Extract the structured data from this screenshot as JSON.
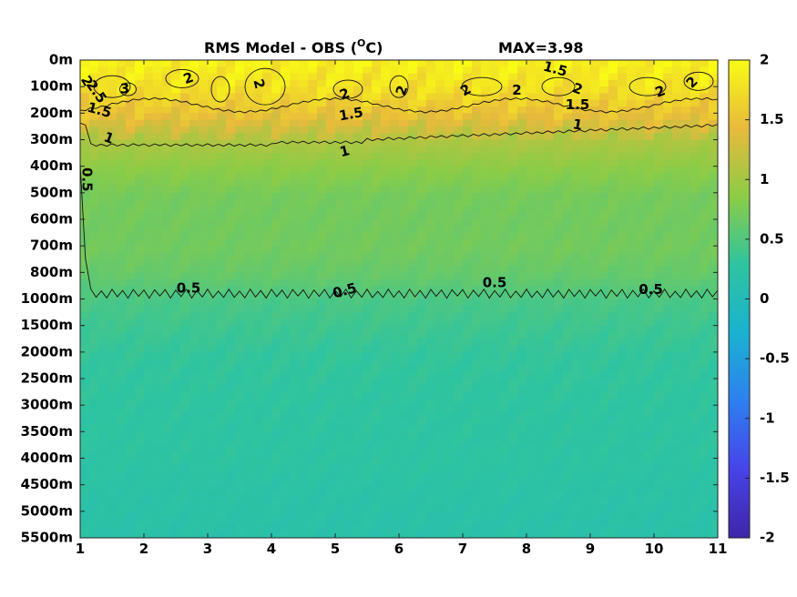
{
  "chart_data": {
    "type": "heatmap",
    "title": "RMS Model - OBS (",
    "title_unit_sup": "O",
    "title_unit_tail": "C)",
    "max_label": "MAX=3.98",
    "x_ticks": [
      "1",
      "2",
      "3",
      "4",
      "5",
      "6",
      "7",
      "8",
      "9",
      "10",
      "11"
    ],
    "xlim": [
      1,
      11
    ],
    "depth_ticks": [
      "0m",
      "100m",
      "200m",
      "300m",
      "400m",
      "500m",
      "600m",
      "700m",
      "800m",
      "1000m",
      "1500m",
      "2000m",
      "2500m",
      "3000m",
      "3500m",
      "4000m",
      "4500m",
      "5000m",
      "5500m"
    ],
    "depth_profile": [
      1.9,
      1.75,
      1.45,
      1.05,
      0.85,
      0.72,
      0.7,
      0.7,
      0.62,
      0.45,
      0.38,
      0.32,
      0.3,
      0.28,
      0.27,
      0.26,
      0.22,
      0.2,
      0.18
    ],
    "colorbar": {
      "min": -2,
      "max": 2,
      "ticks": [
        "2",
        "1.5",
        "1",
        "0.5",
        "0",
        "-0.5",
        "-1",
        "-1.5",
        "-2"
      ],
      "colors": [
        "#3e26a8",
        "#4743e8",
        "#2e7ff0",
        "#1ab2d0",
        "#2ec4a0",
        "#8ccc46",
        "#e8ba3c",
        "#f9fb15"
      ]
    },
    "contour_labels": [
      {
        "text": "2",
        "x": 1.1,
        "depth": 0.8,
        "rot": 60
      },
      {
        "text": "2.5",
        "x": 1.25,
        "depth": 1.2,
        "rot": 55
      },
      {
        "text": "3",
        "x": 1.7,
        "depth": 1.1,
        "rot": 0
      },
      {
        "text": "2",
        "x": 2.7,
        "depth": 0.7,
        "rot": -20
      },
      {
        "text": "2",
        "x": 3.8,
        "depth": 0.9,
        "rot": 75
      },
      {
        "text": "2",
        "x": 5.15,
        "depth": 1.3,
        "rot": -20
      },
      {
        "text": "2",
        "x": 6.05,
        "depth": 1.15,
        "rot": -70
      },
      {
        "text": "2",
        "x": 7.05,
        "depth": 1.15,
        "rot": -30
      },
      {
        "text": "2",
        "x": 7.85,
        "depth": 1.15,
        "rot": 0
      },
      {
        "text": "2",
        "x": 8.8,
        "depth": 1.1,
        "rot": 20
      },
      {
        "text": "2",
        "x": 10.1,
        "depth": 1.2,
        "rot": -20
      },
      {
        "text": "2",
        "x": 10.6,
        "depth": 0.85,
        "rot": -45
      },
      {
        "text": "1.5",
        "x": 8.45,
        "depth": 0.35,
        "rot": 15
      },
      {
        "text": "1.5",
        "x": 1.3,
        "depth": 1.9,
        "rot": 15
      },
      {
        "text": "1.5",
        "x": 5.25,
        "depth": 2.05,
        "rot": -10
      },
      {
        "text": "1.5",
        "x": 8.8,
        "depth": 1.7,
        "rot": 0
      },
      {
        "text": "1",
        "x": 1.45,
        "depth": 2.95,
        "rot": 20
      },
      {
        "text": "1",
        "x": 5.15,
        "depth": 3.45,
        "rot": -15
      },
      {
        "text": "1",
        "x": 8.8,
        "depth": 2.45,
        "rot": 10
      },
      {
        "text": "0.5",
        "x": 1.1,
        "depth": 4.5,
        "rot": 90
      },
      {
        "text": "0.5",
        "x": 2.7,
        "depth": 8.6,
        "rot": 0
      },
      {
        "text": "0.5",
        "x": 5.15,
        "depth": 8.7,
        "rot": -15
      },
      {
        "text": "0.5",
        "x": 7.5,
        "depth": 8.4,
        "rot": 0
      },
      {
        "text": "0.5",
        "x": 9.95,
        "depth": 8.65,
        "rot": 0
      }
    ]
  }
}
